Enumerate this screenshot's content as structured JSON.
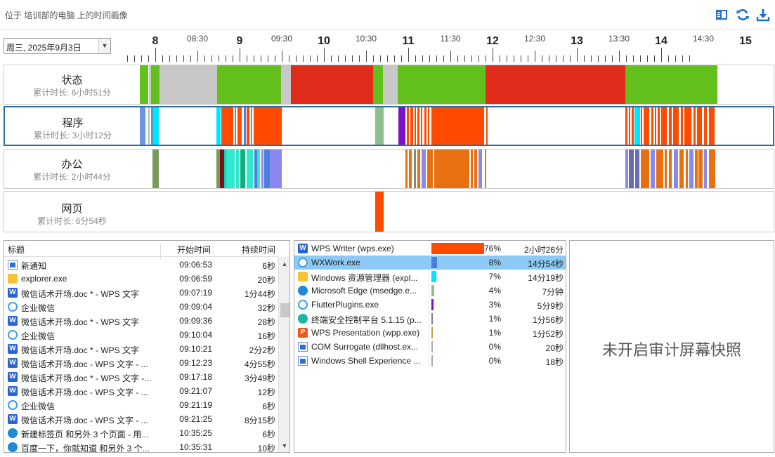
{
  "header": {
    "title": "位于 培训部的电脑 上的时间画像",
    "icons": [
      "panel-toggle-icon",
      "refresh-icon",
      "download-icon"
    ]
  },
  "date_selector": {
    "value": "周三, 2025年9月3日"
  },
  "ruler": {
    "hour_labels": [
      "8",
      "9",
      "10",
      "11",
      "12",
      "13",
      "14",
      "15"
    ],
    "half_labels": [
      "08:30",
      "09:30",
      "10:30",
      "11:30",
      "12:30",
      "13:30",
      "14:30"
    ]
  },
  "tracks": [
    {
      "name": "状态",
      "duration": "累计时长: 6小时51分"
    },
    {
      "name": "程序",
      "duration": "累计时长: 3小时12分"
    },
    {
      "name": "办公",
      "duration": "累计时长: 2小时44分"
    },
    {
      "name": "网页",
      "duration": "累计时长: 6分54秒"
    }
  ],
  "colors": {
    "active": "#62bf1c",
    "idle": "#c8c8c8",
    "away": "#e02d1b",
    "wps": "#ff4a00",
    "selected_row": "#8cc9f5",
    "track_selected_border": "#2e6c9c"
  },
  "window_table": {
    "headers": {
      "title": "标题",
      "start": "开始时间",
      "duration": "持续时间"
    },
    "rows": [
      {
        "icon": "notification-icon",
        "title": "新通知",
        "start": "09:06:53",
        "duration": "6秒"
      },
      {
        "icon": "folder-icon",
        "title": "explorer.exe",
        "start": "09:06:59",
        "duration": "20秒"
      },
      {
        "icon": "wps-writer-icon",
        "title": "微信话术开场.doc * - WPS 文字",
        "start": "09:07:19",
        "duration": "1分44秒"
      },
      {
        "icon": "wxwork-icon",
        "title": "企业微信",
        "start": "09:09:04",
        "duration": "32秒"
      },
      {
        "icon": "wps-writer-icon",
        "title": "微信话术开场.doc * - WPS 文字",
        "start": "09:09:36",
        "duration": "28秒"
      },
      {
        "icon": "wxwork-icon",
        "title": "企业微信",
        "start": "09:10:04",
        "duration": "16秒"
      },
      {
        "icon": "wps-writer-icon",
        "title": "微信话术开场.doc * - WPS 文字",
        "start": "09:10:21",
        "duration": "2分2秒"
      },
      {
        "icon": "wps-writer-icon",
        "title": "微信话术开场.doc - WPS 文字 - ...",
        "start": "09:12:23",
        "duration": "4分55秒"
      },
      {
        "icon": "wps-writer-icon",
        "title": "微信话术开场.doc * - WPS 文字 -...",
        "start": "09:17:18",
        "duration": "3分49秒"
      },
      {
        "icon": "wps-writer-icon",
        "title": "微信话术开场.doc - WPS 文字 - ...",
        "start": "09:21:07",
        "duration": "12秒"
      },
      {
        "icon": "wxwork-icon",
        "title": "企业微信",
        "start": "09:21:19",
        "duration": "6秒"
      },
      {
        "icon": "wps-writer-icon",
        "title": "微信话术开场.doc - WPS 文字 - ...",
        "start": "09:21:25",
        "duration": "8分15秒"
      },
      {
        "icon": "edge-icon",
        "title": "新建标签页 和另外 3 个页面 - 用...",
        "start": "10:35:25",
        "duration": "6秒"
      },
      {
        "icon": "edge-icon",
        "title": "百度一下，你就知道 和另外 3 个...",
        "start": "10:35:31",
        "duration": "10秒"
      }
    ]
  },
  "app_table": {
    "rows": [
      {
        "icon": "wps-writer-icon",
        "name": "WPS Writer (wps.exe)",
        "percent": "76%",
        "percent_value": 76,
        "time": "2小时26分",
        "bar_color": "#ff4a00"
      },
      {
        "icon": "wxwork-icon",
        "name": "WXWork.exe",
        "percent": "8%",
        "percent_value": 8,
        "time": "14分54秒",
        "bar_color": "#4a7fe0",
        "selected": true
      },
      {
        "icon": "folder-icon",
        "name": "Windows 资源管理器 (expl...",
        "percent": "7%",
        "percent_value": 7,
        "time": "14分19秒",
        "bar_color": "#00e5ff"
      },
      {
        "icon": "edge-icon",
        "name": "Microsoft Edge (msedge.e...",
        "percent": "4%",
        "percent_value": 4,
        "time": "7分钟",
        "bar_color": "#8fbf8f"
      },
      {
        "icon": "wxwork-icon",
        "name": "FlutterPlugins.exe",
        "percent": "3%",
        "percent_value": 3,
        "time": "5分9秒",
        "bar_color": "#7a10c8"
      },
      {
        "icon": "security-icon",
        "name": "终端安全控制平台 5.1.15 (p...",
        "percent": "1%",
        "percent_value": 1,
        "time": "1分56秒",
        "bar_color": "#808080"
      },
      {
        "icon": "wps-presentation-icon",
        "name": "WPS Presentation (wpp.exe)",
        "percent": "1%",
        "percent_value": 1,
        "time": "1分52秒",
        "bar_color": "#c8a040"
      },
      {
        "icon": "app-window-icon",
        "name": "COM Surrogate (dllhost.ex...",
        "percent": "0%",
        "percent_value": 0,
        "time": "20秒",
        "bar_color": "#aaaaaa"
      },
      {
        "icon": "app-window-icon",
        "name": "Windows Shell Experience ...",
        "percent": "0%",
        "percent_value": 0,
        "time": "18秒",
        "bar_color": "#aaaaaa"
      }
    ]
  },
  "snapshot": {
    "message": "未开启审计屏幕快照"
  }
}
